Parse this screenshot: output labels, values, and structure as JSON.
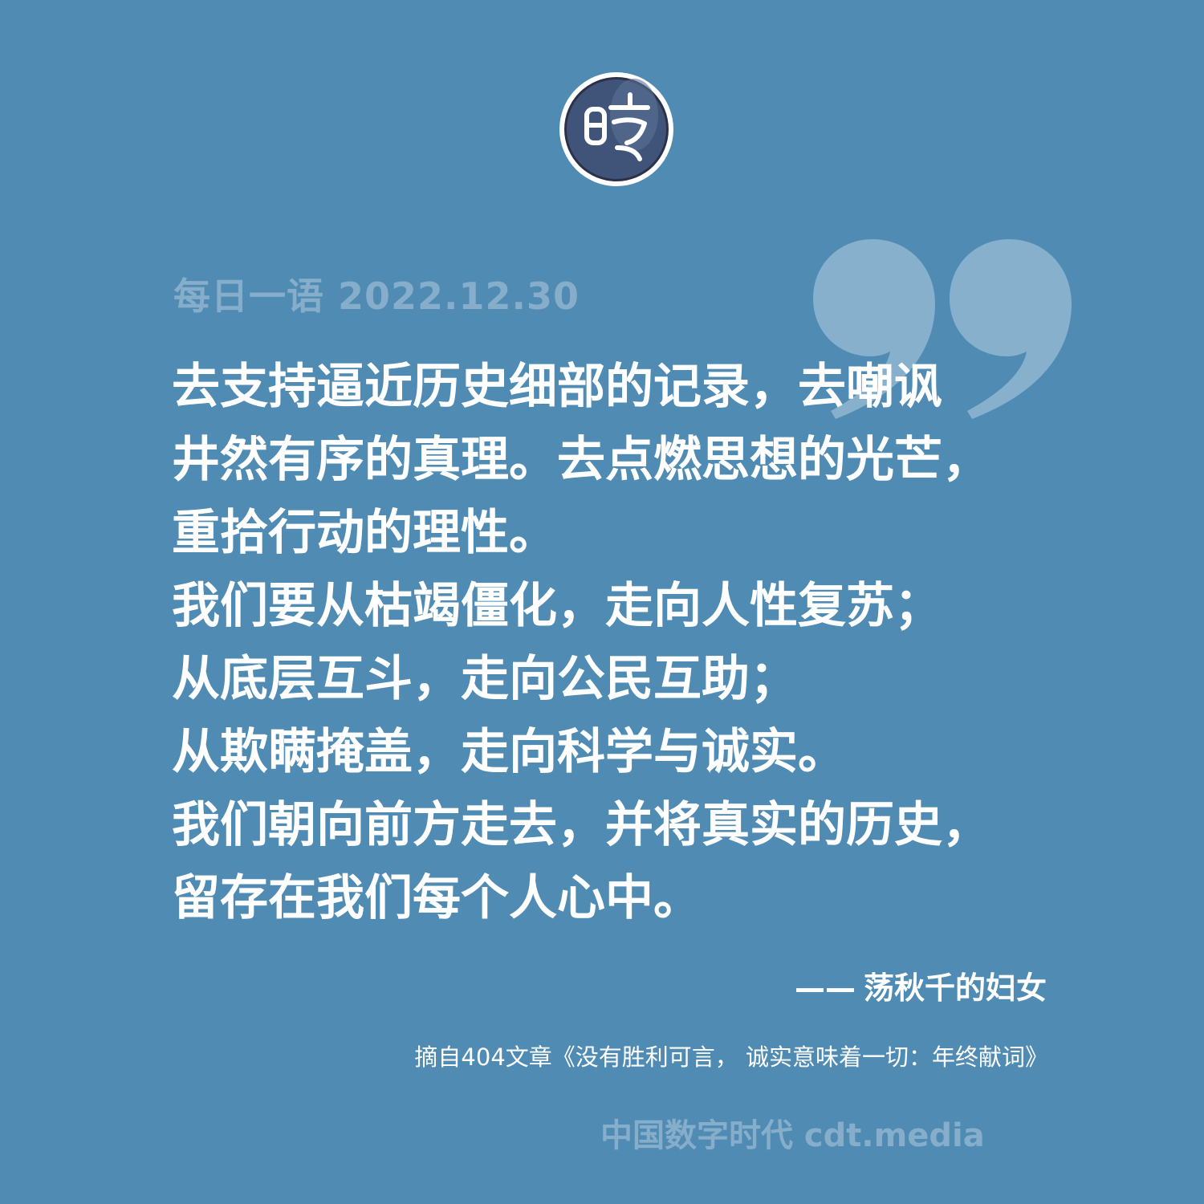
{
  "header": {
    "logo_glyph": "时",
    "date_line": "每日一语 2022.12.30"
  },
  "quote": {
    "lines": [
      "去支持逼近历史细部的记录，去嘲讽",
      "井然有序的真理。去点燃思想的光芒，",
      "重拾行动的理性。",
      "我们要从枯竭僵化，走向人性复苏；",
      "从底层互斗，走向公民互助；",
      "从欺瞒掩盖，走向科学与诚实。",
      "我们朝向前方走去，并将真实的历史，",
      "留存在我们每个人心中。"
    ]
  },
  "attribution": {
    "dash": "——",
    "author": "荡秋千的妇女"
  },
  "source": {
    "text": "摘自404文章《没有胜利可言， 诚实意味着一切：年终献词》"
  },
  "footer": {
    "text": "中国数字时代 cdt.media"
  },
  "colors": {
    "background": "#4f8bb3",
    "muted_text": "#86aecb",
    "quote_mark": "#86b0cc",
    "logo_fill": "#3f5478",
    "text": "#ffffff"
  }
}
